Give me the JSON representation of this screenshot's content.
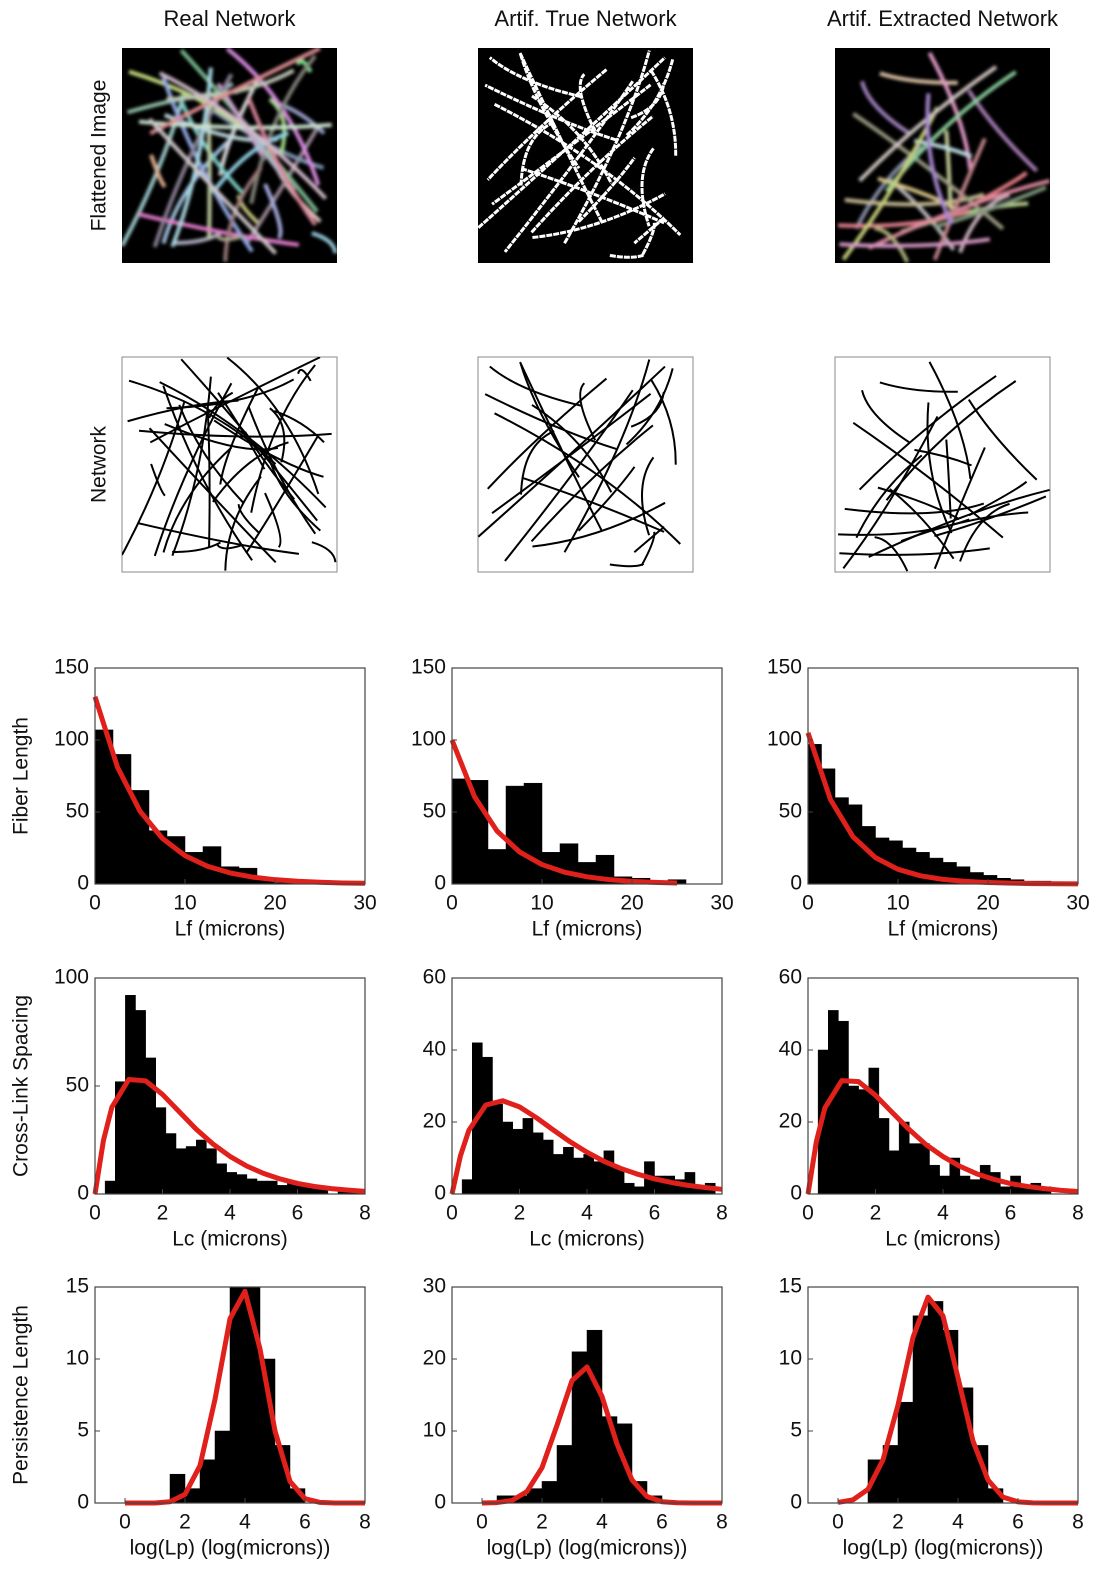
{
  "columns": [
    "Real Network",
    "Artif. True Network",
    "Artif. Extracted Network"
  ],
  "image_rows": [
    "Flattened Image",
    "Network"
  ],
  "chart_data": [
    {
      "type": "histogram",
      "ylabel": "Fiber Length",
      "xlabel": "Lf (microns)",
      "color": "#000000",
      "xlim": [
        0,
        30
      ],
      "ylim": [
        0,
        150
      ],
      "xticks": [
        0,
        10,
        20,
        30
      ],
      "yticks": [
        0,
        50,
        100,
        150
      ],
      "bins": [
        0,
        2,
        4,
        6,
        8,
        10,
        12,
        14,
        16,
        18,
        20,
        22,
        24
      ],
      "values": [
        107,
        90,
        65,
        37,
        33,
        22,
        26,
        12,
        11,
        3,
        1,
        0
      ],
      "fit": {
        "color": "#e0201b",
        "x": [
          0,
          2.5,
          5,
          7.5,
          10,
          12.5,
          15,
          17.5,
          20,
          22.5,
          25,
          27.5,
          30
        ],
        "values": [
          130,
          81.1,
          50.6,
          31.6,
          19.7,
          12.3,
          7.7,
          4.8,
          3.0,
          1.9,
          1.2,
          0.7,
          0.5
        ]
      }
    },
    {
      "type": "histogram",
      "xlabel": "Lf (microns)",
      "color": "#000000",
      "xlim": [
        0,
        30
      ],
      "ylim": [
        0,
        150
      ],
      "xticks": [
        0,
        10,
        20,
        30
      ],
      "yticks": [
        0,
        50,
        100,
        150
      ],
      "bins": [
        0,
        2,
        4,
        6,
        8,
        10,
        12,
        14,
        16,
        18,
        20,
        22,
        24,
        26
      ],
      "values": [
        73,
        72,
        24,
        68,
        70,
        22,
        28,
        15,
        20,
        5,
        4,
        2,
        3
      ],
      "fit": {
        "color": "#e0201b",
        "x": [
          0,
          2.5,
          5,
          7.5,
          10,
          12.5,
          15,
          17.5,
          20,
          22.5,
          25
        ],
        "values": [
          100,
          60.7,
          36.8,
          22.3,
          13.5,
          8.2,
          5.0,
          3.0,
          1.8,
          1.1,
          0.7
        ]
      }
    },
    {
      "type": "histogram",
      "xlabel": "Lf (microns)",
      "color": "#000000",
      "xlim": [
        0,
        30
      ],
      "ylim": [
        0,
        150
      ],
      "xticks": [
        0,
        10,
        20,
        30
      ],
      "yticks": [
        0,
        50,
        100,
        150
      ],
      "bins": [
        0,
        1.5,
        3,
        4.5,
        6,
        7.5,
        9,
        10.5,
        12,
        13.5,
        15,
        16.5,
        18,
        19.5,
        21,
        22.5,
        24,
        25.5,
        27
      ],
      "values": [
        97,
        80,
        60,
        55,
        40,
        32,
        30,
        25,
        22,
        18,
        15,
        12,
        8,
        6,
        4,
        3,
        2,
        2
      ],
      "fit": {
        "color": "#e0201b",
        "x": [
          0,
          2.5,
          5,
          7.5,
          10,
          12.5,
          15,
          17.5,
          20,
          22.5,
          25,
          27.5,
          30
        ],
        "values": [
          105,
          58.6,
          32.8,
          18.3,
          10.2,
          5.7,
          3.2,
          1.8,
          1.0,
          0.6,
          0.3,
          0.2,
          0.1
        ]
      }
    },
    {
      "type": "histogram",
      "ylabel": "Cross-Link Spacing",
      "xlabel": "Lc (microns)",
      "color": "#000000",
      "xlim": [
        0,
        8
      ],
      "ylim": [
        0,
        100
      ],
      "xticks": [
        0,
        2,
        4,
        6,
        8
      ],
      "yticks": [
        0,
        50,
        100
      ],
      "bins": [
        0.3,
        0.6,
        0.9,
        1.2,
        1.5,
        1.8,
        2.1,
        2.4,
        2.7,
        3.0,
        3.3,
        3.6,
        3.9,
        4.2,
        4.5,
        4.8,
        5.1,
        5.4,
        5.7,
        6.0,
        6.3,
        6.6,
        6.9,
        7.2,
        7.5,
        7.8
      ],
      "values": [
        6,
        52,
        92,
        85,
        63,
        40,
        28,
        21,
        22,
        25,
        21,
        14,
        10,
        9,
        7,
        6,
        6,
        4,
        6,
        5,
        3,
        2,
        0,
        1,
        2
      ],
      "fit": {
        "color": "#e0201b",
        "x": [
          0,
          0.25,
          0.5,
          1,
          1.5,
          2,
          2.5,
          3,
          3.5,
          4,
          4.5,
          5,
          5.5,
          6,
          6.5,
          7,
          7.5,
          8
        ],
        "values": [
          0,
          24.8,
          40.2,
          53.0,
          52.4,
          46.1,
          38.0,
          30.0,
          23.1,
          17.4,
          12.9,
          9.5,
          6.9,
          4.9,
          3.5,
          2.5,
          1.8,
          1.2
        ]
      }
    },
    {
      "type": "histogram",
      "xlabel": "Lc (microns)",
      "color": "#000000",
      "xlim": [
        0,
        8
      ],
      "ylim": [
        0,
        60
      ],
      "xticks": [
        0,
        2,
        4,
        6,
        8
      ],
      "yticks": [
        0,
        20,
        40,
        60
      ],
      "bins": [
        0.3,
        0.6,
        0.9,
        1.2,
        1.5,
        1.8,
        2.1,
        2.4,
        2.7,
        3.0,
        3.3,
        3.6,
        3.9,
        4.2,
        4.5,
        4.8,
        5.1,
        5.4,
        5.7,
        6.0,
        6.3,
        6.6,
        6.9,
        7.2,
        7.5,
        7.8
      ],
      "values": [
        4,
        42,
        38,
        25,
        20,
        18,
        21,
        17,
        15,
        11,
        13,
        10,
        11,
        9,
        12,
        7,
        3,
        2,
        9,
        5,
        5,
        4,
        6,
        2,
        3
      ],
      "fit": {
        "color": "#e0201b",
        "x": [
          0,
          0.25,
          0.5,
          1,
          1.5,
          2,
          2.5,
          3,
          3.5,
          4,
          4.5,
          5,
          5.5,
          6,
          6.5,
          7,
          7.5,
          8
        ],
        "values": [
          0,
          10.6,
          17.7,
          24.7,
          25.9,
          24.2,
          21.2,
          17.8,
          14.5,
          11.6,
          9.1,
          7.1,
          5.5,
          4.2,
          3.2,
          2.4,
          1.8,
          1.3
        ]
      }
    },
    {
      "type": "histogram",
      "xlabel": "Lc (microns)",
      "color": "#000000",
      "xlim": [
        0,
        8
      ],
      "ylim": [
        0,
        60
      ],
      "xticks": [
        0,
        2,
        4,
        6,
        8
      ],
      "yticks": [
        0,
        20,
        40,
        60
      ],
      "bins": [
        0.3,
        0.6,
        0.9,
        1.2,
        1.5,
        1.8,
        2.1,
        2.4,
        2.7,
        3.0,
        3.3,
        3.6,
        3.9,
        4.2,
        4.5,
        4.8,
        5.1,
        5.4,
        5.7,
        6.0,
        6.3,
        6.6,
        6.9,
        7.2,
        7.5,
        7.8
      ],
      "values": [
        40,
        51,
        48,
        30,
        29,
        35,
        21,
        12,
        20,
        14,
        14,
        8,
        5,
        10,
        5,
        4,
        8,
        6,
        2,
        5,
        2,
        3,
        2,
        0,
        0
      ],
      "fit": {
        "color": "#e0201b",
        "x": [
          0,
          0.25,
          0.5,
          1,
          1.5,
          2,
          2.5,
          3,
          3.5,
          4,
          4.5,
          5,
          5.5,
          6,
          6.5,
          7,
          7.5,
          8
        ],
        "values": [
          0,
          14.7,
          23.9,
          31.5,
          31.2,
          27.4,
          22.6,
          17.9,
          13.7,
          10.4,
          7.7,
          5.6,
          4.1,
          2.9,
          2.1,
          1.5,
          1.0,
          0.7
        ]
      }
    },
    {
      "type": "histogram",
      "ylabel": "Persistence Length",
      "xlabel": "log(Lp) (log(microns))",
      "color": "#000000",
      "xlim": [
        -1,
        8
      ],
      "ylim": [
        0,
        15
      ],
      "xticks": [
        0,
        2,
        4,
        6,
        8
      ],
      "yticks": [
        0,
        5,
        10,
        15
      ],
      "bins": [
        1.5,
        2,
        2.5,
        3,
        3.5,
        4,
        4.5,
        5,
        5.5,
        6
      ],
      "values": [
        2,
        1,
        3,
        5,
        15,
        15,
        10,
        4,
        1
      ],
      "fit": {
        "color": "#e0201b",
        "x": [
          0,
          1,
          1.5,
          2,
          2.5,
          3,
          3.5,
          4,
          4.5,
          5,
          5.5,
          6,
          6.5,
          7,
          8
        ],
        "values": [
          0,
          0,
          0.09,
          0.6,
          2.6,
          7.2,
          12.8,
          14.7,
          10.7,
          5.0,
          1.5,
          0.3,
          0.04,
          0,
          0
        ]
      }
    },
    {
      "type": "histogram",
      "xlabel": "log(Lp) (log(microns))",
      "color": "#000000",
      "xlim": [
        -1,
        8
      ],
      "ylim": [
        0,
        30
      ],
      "xticks": [
        0,
        2,
        4,
        6,
        8
      ],
      "yticks": [
        0,
        10,
        20,
        30
      ],
      "bins": [
        0.5,
        1,
        1.5,
        2,
        2.5,
        3,
        3.5,
        4,
        4.5,
        5,
        5.5,
        6
      ],
      "values": [
        1,
        1,
        2,
        3,
        8,
        21,
        24,
        12,
        11,
        3,
        1
      ],
      "fit": {
        "color": "#e0201b",
        "x": [
          0,
          0.5,
          1,
          1.5,
          2,
          2.5,
          3,
          3.5,
          4,
          4.5,
          5,
          5.5,
          6,
          6.5,
          7,
          8
        ],
        "values": [
          0,
          0.06,
          0.35,
          1.6,
          4.9,
          10.8,
          17.0,
          18.9,
          14.8,
          8.2,
          3.2,
          0.9,
          0.18,
          0.03,
          0,
          0
        ]
      }
    },
    {
      "type": "histogram",
      "xlabel": "log(Lp) (log(microns))",
      "color": "#000000",
      "xlim": [
        -1,
        8
      ],
      "ylim": [
        0,
        15
      ],
      "xticks": [
        0,
        2,
        4,
        6,
        8
      ],
      "yticks": [
        0,
        5,
        10,
        15
      ],
      "bins": [
        1,
        1.5,
        2,
        2.5,
        3,
        3.5,
        4,
        4.5,
        5,
        5.5
      ],
      "values": [
        3,
        4,
        7,
        13,
        14,
        12,
        8,
        4,
        1
      ],
      "fit": {
        "color": "#e0201b",
        "x": [
          0,
          0.5,
          1,
          1.5,
          2,
          2.5,
          3,
          3.5,
          4,
          4.5,
          5,
          5.5,
          6,
          6.5,
          7,
          8
        ],
        "values": [
          0.04,
          0.22,
          0.95,
          3.0,
          6.8,
          11.5,
          14.3,
          13.0,
          8.7,
          4.3,
          1.6,
          0.41,
          0.08,
          0.01,
          0,
          0
        ]
      }
    }
  ]
}
